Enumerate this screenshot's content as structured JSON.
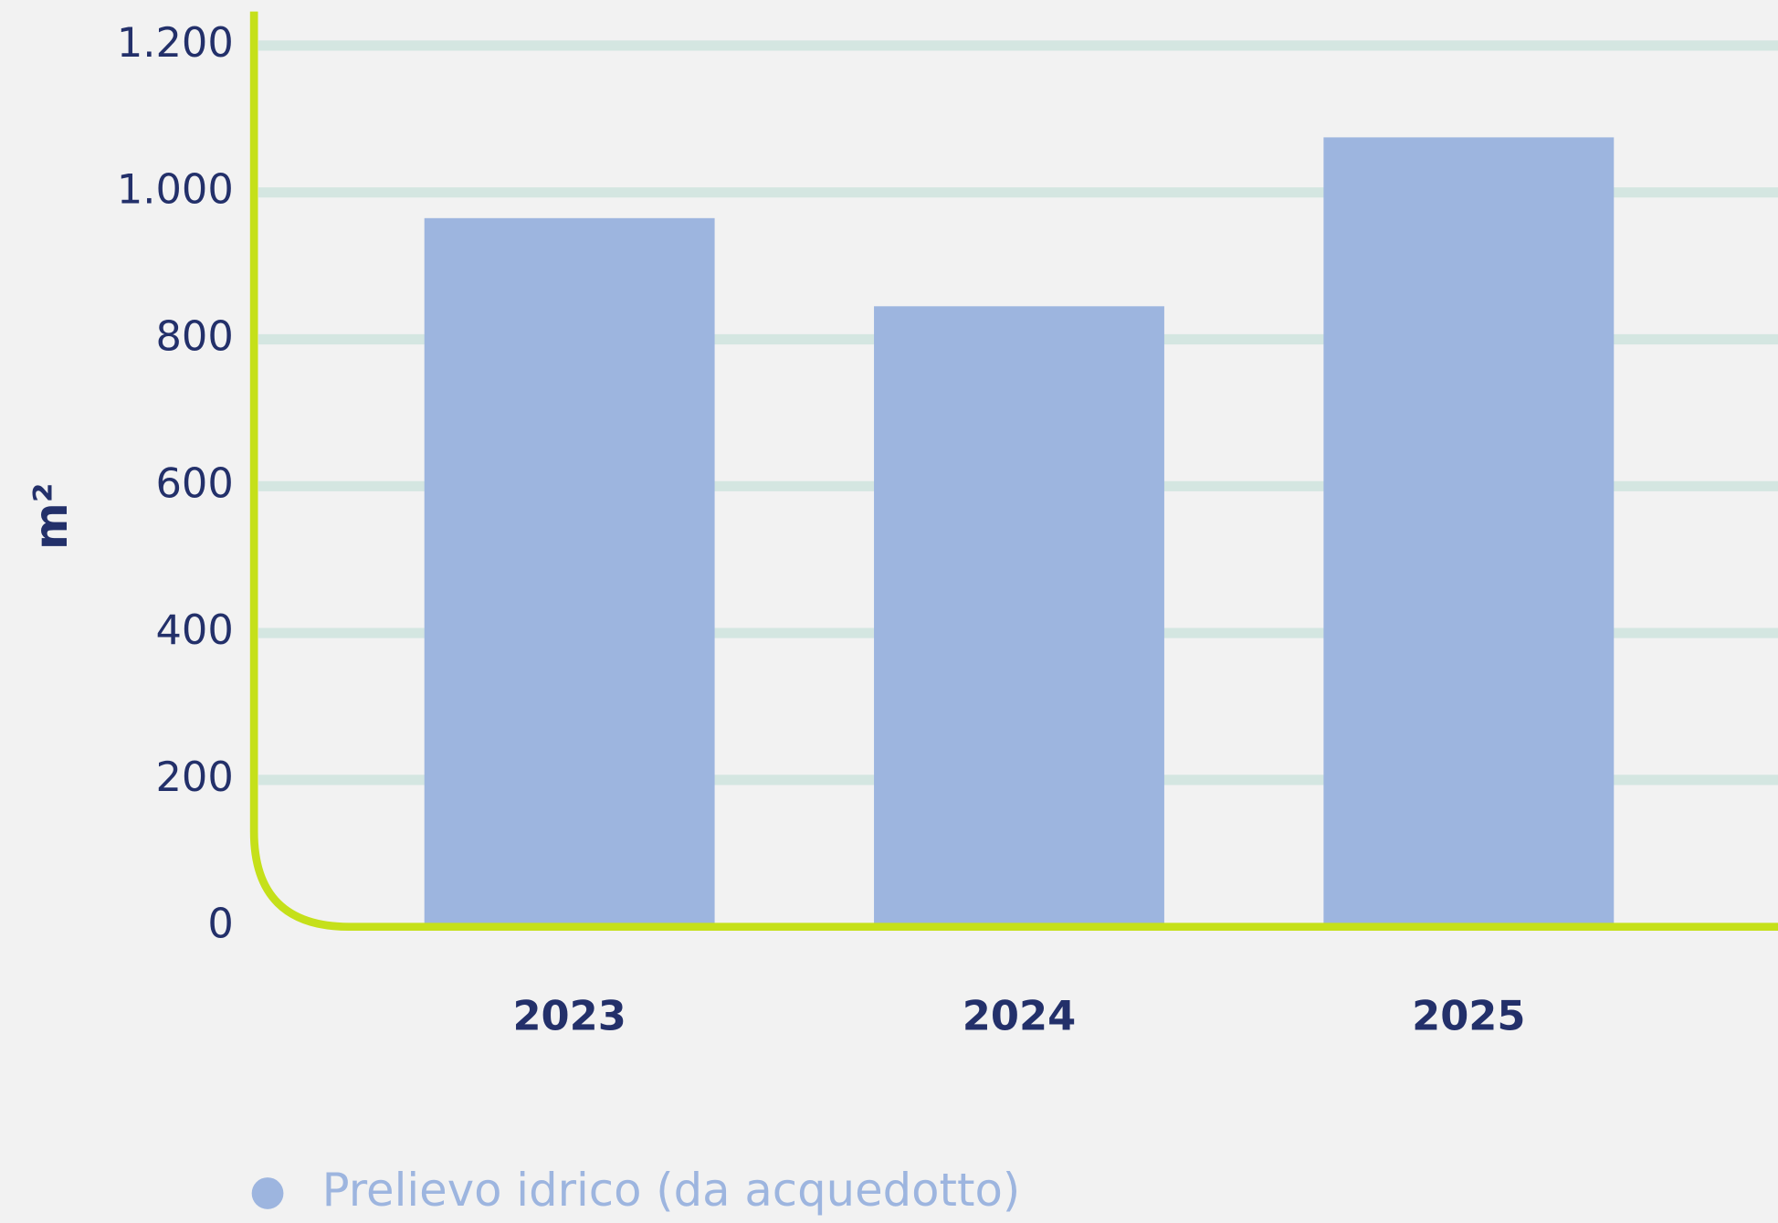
{
  "chart_data": {
    "type": "bar",
    "y_label": "m²",
    "categories": [
      "2023",
      "2024",
      "2025"
    ],
    "series": [
      {
        "name": "Prelievo idrico (da acquedotto)",
        "color": "#9db5df",
        "values": [
          965,
          845,
          1075
        ]
      }
    ],
    "ylim": [
      0,
      1200
    ],
    "yticks": [
      0,
      200,
      400,
      600,
      800,
      {
        "value": 1000,
        "label": "1.000"
      },
      {
        "value": 1200,
        "label": "1.200"
      }
    ],
    "grid": true,
    "grid_color": "#d4e6e1",
    "axis_color": "#c5e01a"
  }
}
